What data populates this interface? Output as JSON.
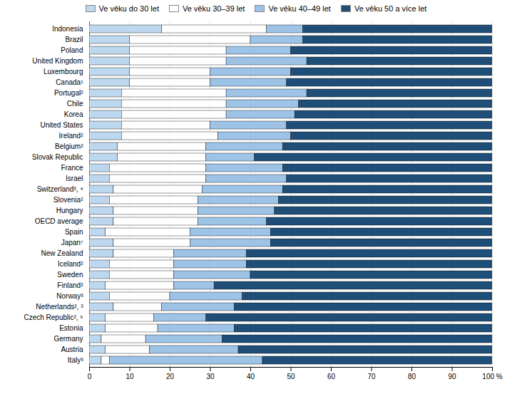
{
  "chart_data": {
    "type": "bar",
    "orientation": "horizontal",
    "stacked": true,
    "categories": [
      "Indonesia",
      "Brazil",
      "Poland",
      "United Kingdom",
      "Luxembourg",
      "Canada¹",
      "Portugal²",
      "Chile",
      "Korea",
      "United States",
      "Ireland²",
      "Belgium²",
      "Slovak Republic",
      "France",
      "Israel",
      "Switzerland³, ⁴",
      "Slovenia²",
      "Hungary",
      "OECD average",
      "Spain",
      "Japan⁷",
      "New Zealand",
      "Iceland²",
      "Sweden",
      "Finland²",
      "Norway³",
      "Netherlands², ³",
      "Czech Republic², ⁵",
      "Estonia",
      "Germany",
      "Austria",
      "Italy³"
    ],
    "series": [
      {
        "name": "Ve věku do 30 let",
        "color": "#bdd7ee",
        "values": [
          18,
          10,
          10,
          10,
          10,
          10,
          8,
          8,
          8,
          8,
          8,
          7,
          7,
          5,
          5,
          6,
          5,
          6,
          6,
          4,
          6,
          6,
          5,
          5,
          4,
          5,
          6,
          4,
          4,
          3,
          4,
          3
        ]
      },
      {
        "name": "Ve věku 30–39 let",
        "color": "#ffffff",
        "values": [
          26,
          30,
          24,
          24,
          20,
          20,
          26,
          26,
          26,
          22,
          24,
          22,
          22,
          24,
          24,
          22,
          22,
          21,
          21,
          21,
          19,
          15,
          16,
          16,
          17,
          15,
          12,
          12,
          13,
          11,
          11,
          2
        ]
      },
      {
        "name": "Ve věku 40–49 let",
        "color": "#9dc3e6",
        "values": [
          9,
          13,
          16,
          20,
          20,
          19,
          20,
          18,
          17,
          19,
          18,
          19,
          12,
          19,
          20,
          20,
          20,
          19,
          17,
          20,
          20,
          18,
          18,
          19,
          10,
          18,
          18,
          13,
          19,
          19,
          22,
          38
        ]
      },
      {
        "name": "Ve věku 50 a více let",
        "color": "#1f4e79",
        "values": [
          47,
          47,
          50,
          46,
          50,
          51,
          46,
          48,
          49,
          51,
          50,
          52,
          59,
          52,
          51,
          52,
          53,
          54,
          56,
          55,
          55,
          61,
          61,
          60,
          69,
          62,
          64,
          71,
          64,
          67,
          63,
          57
        ]
      }
    ],
    "xlim": [
      0,
      100
    ],
    "xticks": [
      0,
      10,
      20,
      30,
      40,
      50,
      60,
      70,
      80,
      90,
      {
        "value": 100,
        "label": "100 %"
      }
    ],
    "grid": true,
    "legend": "top"
  }
}
